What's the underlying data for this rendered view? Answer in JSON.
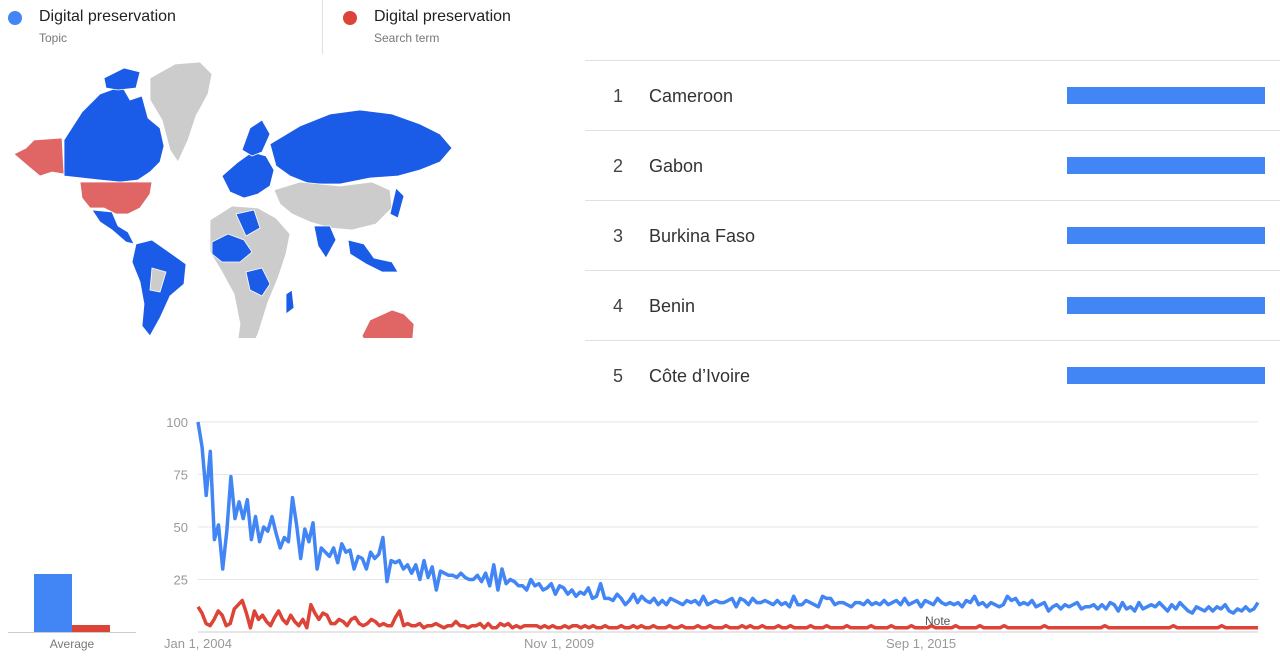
{
  "legend": {
    "items": [
      {
        "name": "Digital preservation",
        "type": "Topic",
        "color": "#4285f4"
      },
      {
        "name": "Digital preservation",
        "type": "Search term",
        "color": "#db4437"
      }
    ]
  },
  "map": {
    "colors": {
      "topic": "#1a5ce8",
      "search_term": "#e06666",
      "no_data": "#cccccc"
    }
  },
  "ranking": {
    "items": [
      {
        "rank": "1",
        "name": "Cameroon",
        "value": 100
      },
      {
        "rank": "2",
        "name": "Gabon",
        "value": 100
      },
      {
        "rank": "3",
        "name": "Burkina Faso",
        "value": 100
      },
      {
        "rank": "4",
        "name": "Benin",
        "value": 100
      },
      {
        "rank": "5",
        "name": "Côte d’Ivoire",
        "value": 100
      }
    ]
  },
  "average": {
    "label": "Average",
    "values": [
      24,
      3
    ]
  },
  "chart_data": {
    "type": "line",
    "x_tick_labels": [
      "Jan 1, 2004",
      "Nov 1, 2009",
      "Sep 1, 2015"
    ],
    "y_ticks": [
      100,
      75,
      50,
      25
    ],
    "ylim": [
      0,
      100
    ],
    "annotation": "Note",
    "series": [
      {
        "color": "#4285f4",
        "values": [
          100,
          88,
          65,
          86,
          44,
          51,
          30,
          48,
          74,
          54,
          62,
          54,
          63,
          44,
          55,
          43,
          50,
          48,
          55,
          47,
          40,
          45,
          43,
          64,
          51,
          35,
          49,
          43,
          52,
          30,
          40,
          38,
          36,
          40,
          33,
          42,
          38,
          39,
          30,
          36,
          35,
          30,
          38,
          35,
          37,
          45,
          24,
          34,
          33,
          34,
          30,
          32,
          28,
          32,
          25,
          34,
          26,
          31,
          20,
          29,
          28,
          27,
          27,
          26,
          28,
          26,
          25,
          25,
          27,
          24,
          28,
          22,
          32,
          20,
          30,
          23,
          25,
          24,
          22,
          22,
          20,
          25,
          22,
          23,
          20,
          21,
          23,
          18,
          22,
          21,
          18,
          20,
          17,
          19,
          18,
          21,
          16,
          17,
          23,
          16,
          16,
          15,
          18,
          16,
          13,
          15,
          18,
          14,
          17,
          15,
          14,
          16,
          13,
          15,
          13,
          16,
          15,
          14,
          13,
          15,
          14,
          15,
          13,
          17,
          13,
          14,
          15,
          14,
          14,
          15,
          16,
          12,
          16,
          15,
          13,
          16,
          14,
          14,
          15,
          14,
          13,
          15,
          13,
          14,
          12,
          17,
          13,
          13,
          15,
          14,
          13,
          12,
          17,
          16,
          16,
          13,
          14,
          14,
          13,
          12,
          14,
          14,
          13,
          15,
          13,
          14,
          13,
          15,
          13,
          14,
          15,
          13,
          16,
          13,
          14,
          15,
          12,
          15,
          14,
          13,
          16,
          14,
          13,
          14,
          13,
          14,
          12,
          15,
          14,
          17,
          13,
          14,
          12,
          14,
          13,
          12,
          13,
          17,
          15,
          16,
          13,
          14,
          13,
          15,
          12,
          13,
          14,
          10,
          12,
          13,
          11,
          13,
          12,
          13,
          14,
          11,
          12,
          12,
          13,
          11,
          13,
          11,
          14,
          13,
          10,
          14,
          11,
          12,
          10,
          14,
          11,
          12,
          13,
          12,
          14,
          12,
          10,
          13,
          11,
          14,
          12,
          10,
          9,
          12,
          11,
          10,
          12,
          10,
          12,
          11,
          13,
          10,
          9,
          11,
          10,
          12,
          10,
          11,
          14
        ]
      },
      {
        "color": "#db4437",
        "values": [
          12,
          9,
          4,
          3,
          6,
          10,
          8,
          3,
          4,
          11,
          13,
          15,
          9,
          2,
          10,
          6,
          8,
          5,
          3,
          7,
          10,
          6,
          4,
          8,
          5,
          3,
          6,
          2,
          13,
          9,
          6,
          9,
          8,
          4,
          4,
          6,
          5,
          3,
          6,
          7,
          4,
          3,
          4,
          6,
          5,
          3,
          4,
          3,
          3,
          7,
          10,
          3,
          4,
          3,
          3,
          4,
          2,
          3,
          3,
          4,
          3,
          2,
          3,
          3,
          5,
          3,
          3,
          2,
          3,
          3,
          4,
          2,
          4,
          2,
          2,
          4,
          3,
          4,
          2,
          3,
          2,
          3,
          3,
          3,
          3,
          2,
          3,
          2,
          3,
          2,
          2,
          3,
          2,
          3,
          3,
          2,
          3,
          2,
          3,
          2,
          2,
          3,
          2,
          2,
          2,
          3,
          2,
          2,
          3,
          2,
          3,
          2,
          2,
          3,
          2,
          2,
          2,
          3,
          2,
          2,
          3,
          2,
          2,
          2,
          3,
          2,
          2,
          3,
          2,
          2,
          2,
          3,
          2,
          2,
          2,
          3,
          2,
          3,
          2,
          2,
          3,
          2,
          2,
          2,
          3,
          2,
          2,
          3,
          2,
          2,
          2,
          2,
          3,
          2,
          2,
          2,
          3,
          2,
          2,
          2,
          2,
          3,
          2,
          2,
          2,
          2,
          2,
          3,
          2,
          2,
          2,
          2,
          3,
          2,
          2,
          2,
          2,
          3,
          2,
          2,
          2,
          2,
          3,
          2,
          2,
          2,
          2,
          2,
          3,
          2,
          2,
          2,
          2,
          2,
          3,
          2,
          2,
          2,
          2,
          2,
          3,
          2,
          2,
          2,
          2,
          2,
          2,
          2,
          2,
          2,
          3,
          2,
          2,
          2,
          2,
          2,
          2,
          2,
          2,
          2,
          2,
          2,
          2,
          2,
          2,
          3,
          2,
          2,
          2,
          2,
          2,
          2,
          2,
          2,
          2,
          2,
          2,
          2,
          2,
          2,
          2,
          2,
          3,
          2,
          2,
          2,
          2,
          2,
          2,
          2,
          2,
          2,
          2,
          2,
          3,
          2,
          2,
          2,
          2,
          2,
          2,
          2,
          2,
          2
        ]
      }
    ]
  }
}
